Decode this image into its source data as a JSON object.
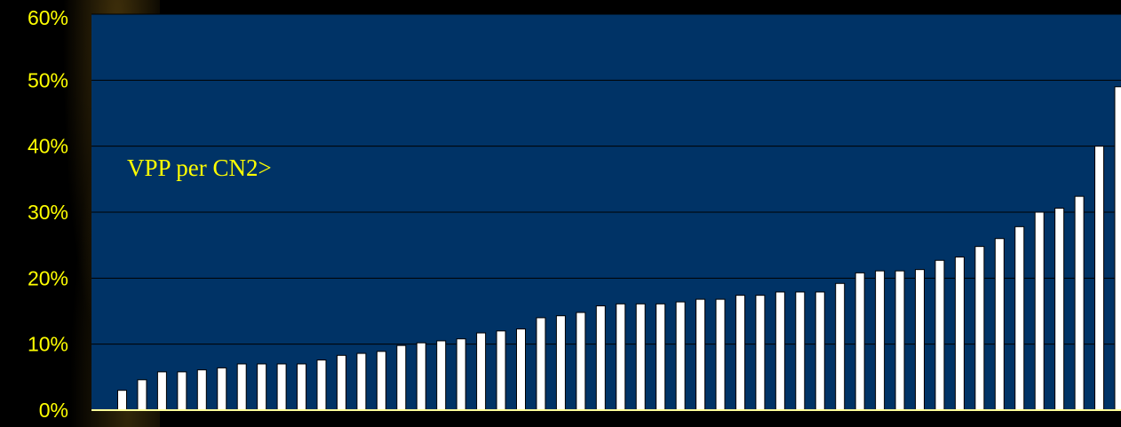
{
  "chart_data": {
    "type": "bar",
    "title": "",
    "xlabel": "",
    "ylabel": "",
    "ylim": [
      0,
      60
    ],
    "y_ticks": [
      "0%",
      "10%",
      "20%",
      "30%",
      "40%",
      "50%",
      "60%"
    ],
    "y_tick_values": [
      0,
      10,
      20,
      30,
      40,
      50,
      60
    ],
    "grid": true,
    "annotation": "VPP per CN2>",
    "values": [
      3.0,
      4.6,
      5.8,
      5.8,
      6.1,
      6.4,
      7.0,
      7.0,
      7.0,
      7.0,
      7.6,
      8.3,
      8.6,
      8.9,
      9.8,
      10.2,
      10.5,
      10.8,
      11.7,
      12.0,
      12.3,
      14.0,
      14.3,
      14.8,
      15.8,
      16.1,
      16.1,
      16.1,
      16.4,
      16.8,
      16.8,
      17.4,
      17.4,
      17.9,
      17.9,
      17.9,
      19.2,
      20.8,
      21.1,
      21.1,
      21.3,
      22.7,
      23.2,
      24.8,
      26.0,
      27.8,
      30.0,
      30.6,
      32.4,
      40.0,
      49.0
    ],
    "colors": {
      "plot_bg": "#003366",
      "bar_fill": "#FFFFFF",
      "bar_stroke": "#000000",
      "text": "#FFFF00",
      "axis": "#FFFF99",
      "grid": "#000000"
    }
  }
}
